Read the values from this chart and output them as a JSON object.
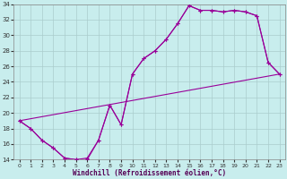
{
  "xlabel": "Windchill (Refroidissement éolien,°C)",
  "xlim": [
    -0.5,
    23.5
  ],
  "ylim": [
    14,
    34
  ],
  "xticks": [
    0,
    1,
    2,
    3,
    4,
    5,
    6,
    7,
    8,
    9,
    10,
    11,
    12,
    13,
    14,
    15,
    16,
    17,
    18,
    19,
    20,
    21,
    22,
    23
  ],
  "yticks": [
    14,
    16,
    18,
    20,
    22,
    24,
    26,
    28,
    30,
    32,
    34
  ],
  "bg_color": "#c8eded",
  "line_color": "#990099",
  "grid_color": "#aacccc",
  "line1_x": [
    0,
    1,
    2,
    3,
    4,
    5,
    6,
    7,
    8,
    9,
    10,
    11,
    12,
    13,
    14,
    15,
    16,
    17,
    18,
    19,
    20,
    21,
    22,
    23
  ],
  "line1_y": [
    19.0,
    18.0,
    16.5,
    15.5,
    14.2,
    14.0,
    14.0,
    16.5,
    21.0,
    18.5,
    25.0,
    27.0,
    28.0,
    29.5,
    31.5,
    33.8,
    33.2,
    33.2,
    33.0,
    33.2,
    33.0,
    32.5,
    26.5,
    25.0
  ],
  "line2_x": [
    0,
    1,
    2,
    3,
    4,
    5,
    6,
    7,
    8,
    9,
    10,
    11,
    12,
    13,
    14,
    15,
    16,
    17,
    18,
    19,
    20,
    21,
    22,
    23
  ],
  "line2_y": [
    19.0,
    18.0,
    16.5,
    15.5,
    14.2,
    14.0,
    14.2,
    16.5,
    21.0,
    18.5,
    25.0,
    27.0,
    28.0,
    29.5,
    31.5,
    33.8,
    33.2,
    33.2,
    33.0,
    33.2,
    33.0,
    32.5,
    26.5,
    25.0
  ],
  "line3_x": [
    0,
    23
  ],
  "line3_y": [
    19.0,
    25.0
  ]
}
